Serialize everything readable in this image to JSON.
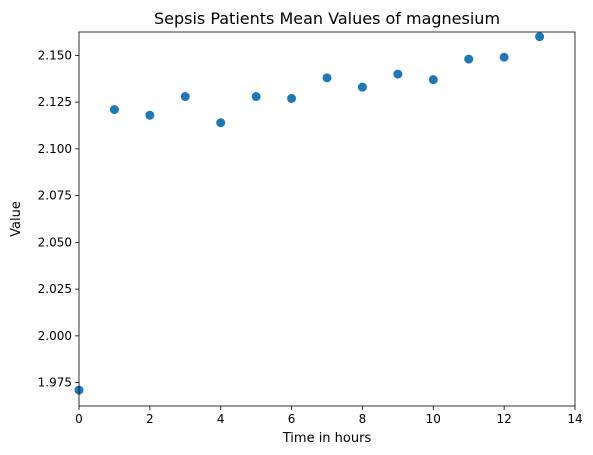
{
  "chart_data": {
    "type": "scatter",
    "title": "Sepsis Patients Mean Values of magnesium",
    "xlabel": "Time in hours",
    "ylabel": "Value",
    "xlim": [
      0,
      14
    ],
    "ylim": [
      1.9625,
      2.1625
    ],
    "xticks": [
      0,
      2,
      4,
      6,
      8,
      10,
      12,
      14
    ],
    "xtick_labels": [
      "0",
      "2",
      "4",
      "6",
      "8",
      "10",
      "12",
      "14"
    ],
    "yticks": [
      1.975,
      2.0,
      2.025,
      2.05,
      2.075,
      2.1,
      2.125,
      2.15
    ],
    "ytick_labels": [
      "1.975",
      "2.000",
      "2.025",
      "2.050",
      "2.075",
      "2.100",
      "2.125",
      "2.150"
    ],
    "grid": false,
    "legend": "none",
    "series": [
      {
        "name": "magnesium",
        "color": "#1f77b4",
        "x": [
          0,
          1,
          2,
          3,
          4,
          5,
          6,
          7,
          8,
          9,
          10,
          11,
          12,
          13
        ],
        "y": [
          1.971,
          2.121,
          2.118,
          2.128,
          2.114,
          2.128,
          2.127,
          2.138,
          2.133,
          2.14,
          2.137,
          2.148,
          2.149,
          2.16
        ]
      }
    ]
  }
}
